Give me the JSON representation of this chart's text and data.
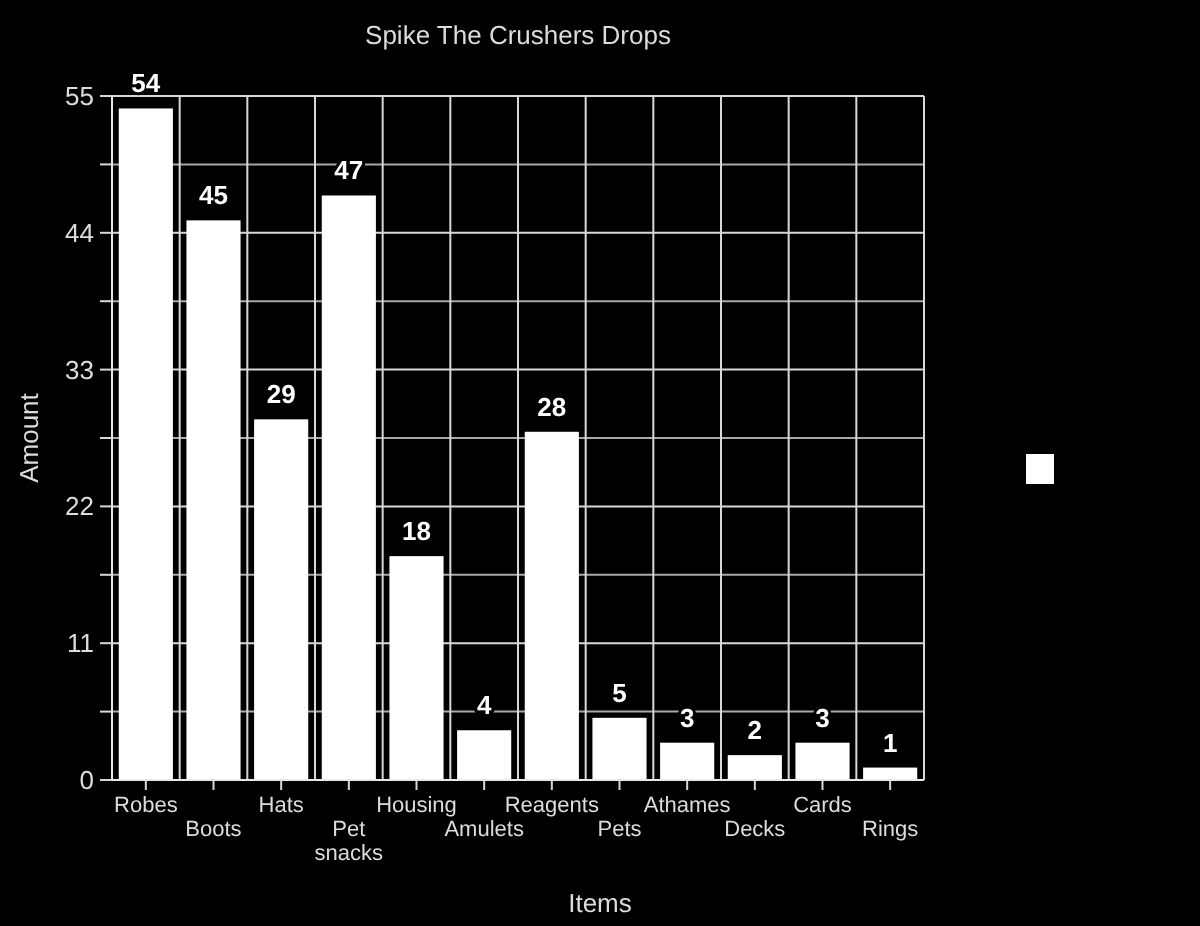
{
  "chart_data": {
    "type": "bar",
    "title": "Spike The Crushers Drops",
    "xlabel": "Items",
    "ylabel": "Amount",
    "categories": [
      "Robes",
      "Boots",
      "Hats",
      "Pet snacks",
      "Housing",
      "Amulets",
      "Reagents",
      "Pets",
      "Athames",
      "Decks",
      "Cards",
      "Rings"
    ],
    "series": [
      {
        "color": "#ffffff",
        "values": [
          54,
          45,
          29,
          47,
          18,
          4,
          28,
          5,
          3,
          2,
          3,
          1
        ]
      }
    ],
    "ylim": [
      0,
      55
    ],
    "yticks": [
      0,
      {
        "value": 5.5,
        "label": null
      },
      11,
      {
        "value": 16.5,
        "label": null
      },
      22,
      {
        "value": 27.5,
        "label": null
      },
      33,
      {
        "value": 38.5,
        "label": null
      },
      44,
      {
        "value": 49.5,
        "label": null
      },
      55
    ],
    "grid": true,
    "data_labels": true
  }
}
